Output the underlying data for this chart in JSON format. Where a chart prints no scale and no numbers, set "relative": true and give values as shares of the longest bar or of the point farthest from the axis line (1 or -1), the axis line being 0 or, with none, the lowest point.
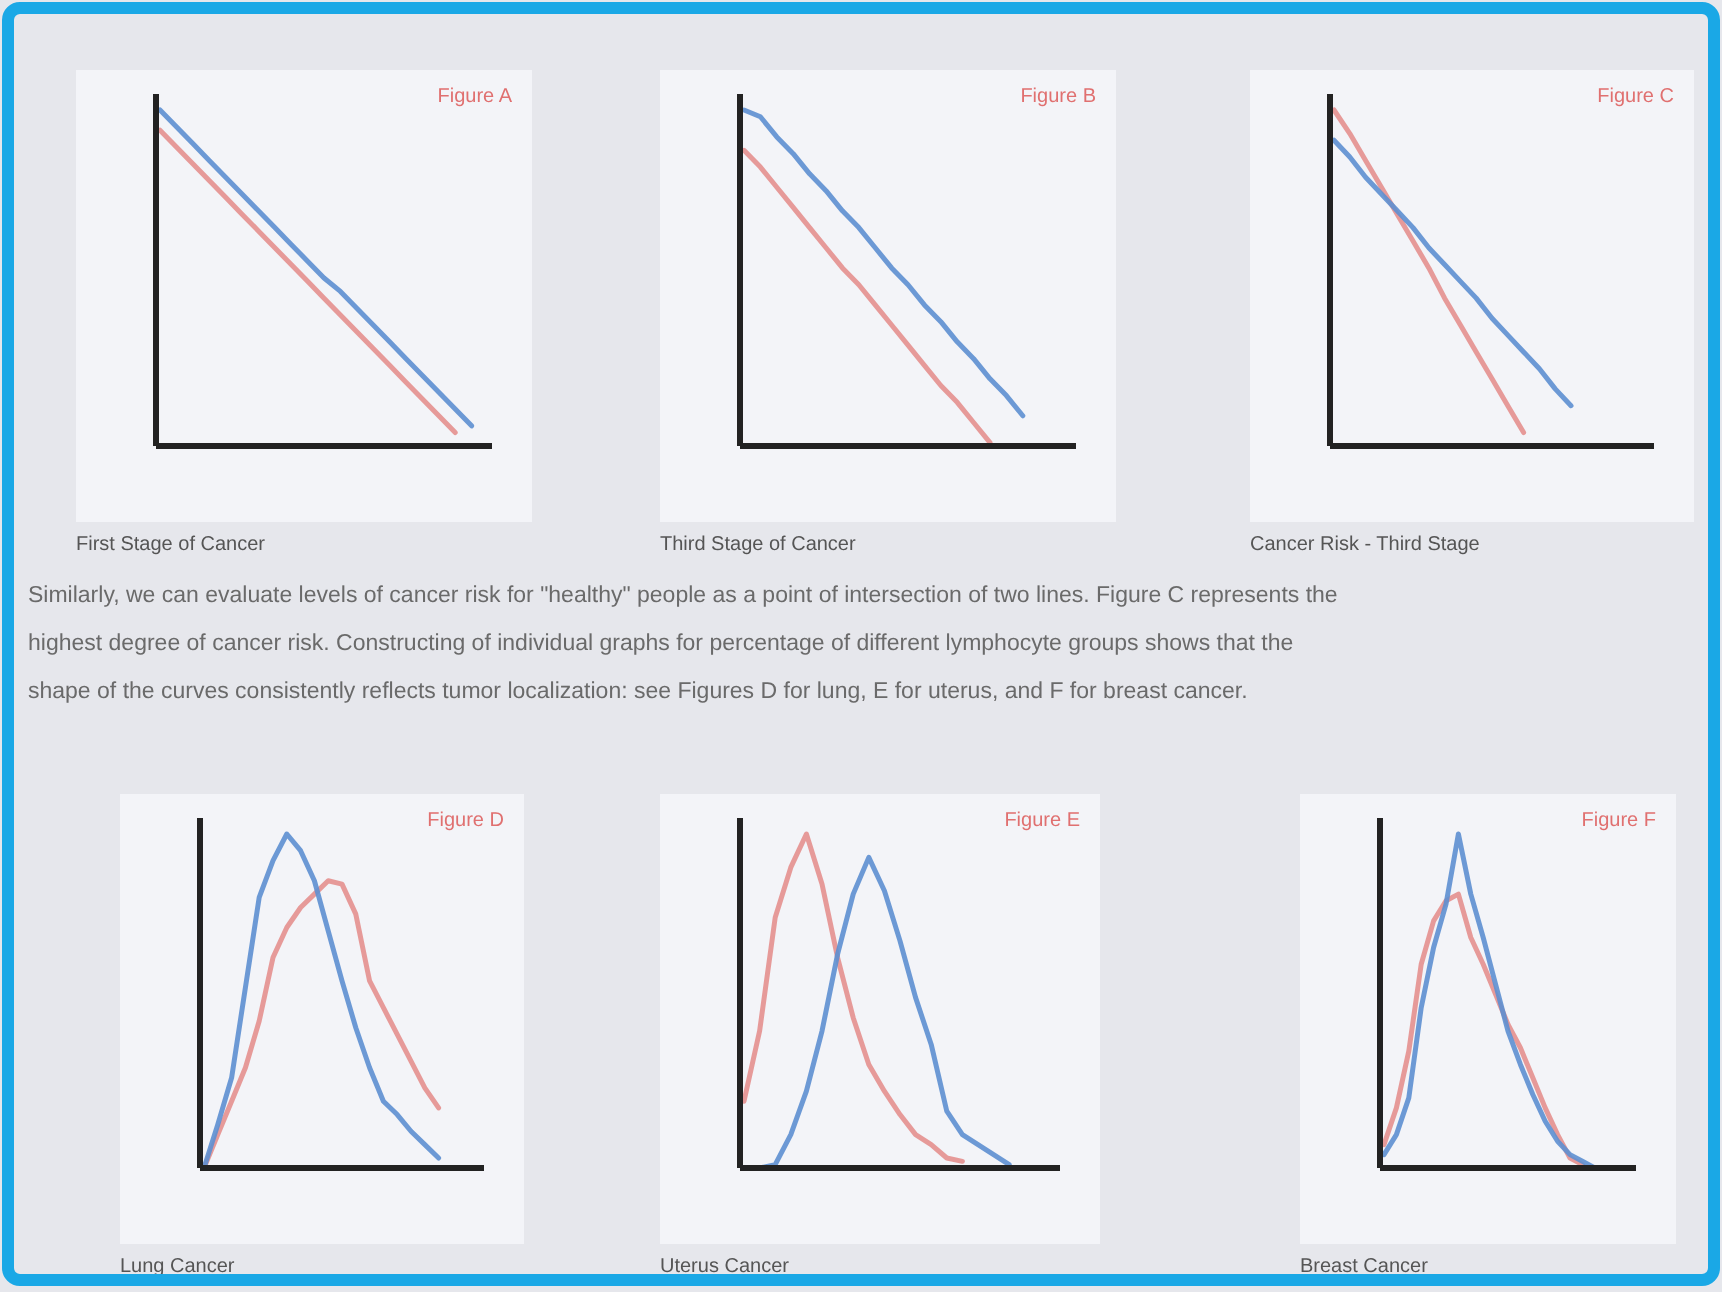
{
  "chart_data": [
    {
      "type": "line",
      "title": "Figure A",
      "annotations": [
        "First Stage of Cancer"
      ],
      "relative": true,
      "categories": [
        null,
        null,
        null,
        null,
        null,
        null,
        null,
        null,
        null,
        null,
        null,
        null,
        null,
        null,
        null,
        null,
        null,
        null,
        null,
        null,
        null
      ],
      "series": [
        {
          "color": "#e4908e",
          "values": [
            0.94,
            0.89,
            0.84,
            0.79,
            0.74,
            0.69,
            0.64,
            0.59,
            0.54,
            0.49,
            0.44,
            0.39,
            0.34,
            0.29,
            0.24,
            0.19,
            0.14,
            0.09,
            0.04,
            null,
            null
          ]
        },
        {
          "color": "#5d8fd0",
          "values": [
            1,
            0.95,
            0.9,
            0.85,
            0.8,
            0.75,
            0.7,
            0.65,
            0.6,
            0.55,
            0.5,
            0.46,
            0.41,
            0.36,
            0.31,
            0.26,
            0.21,
            0.16,
            0.11,
            0.06,
            null
          ]
        }
      ]
    },
    {
      "type": "line",
      "title": "Figure B",
      "annotations": [
        "Third Stage of Cancer"
      ],
      "relative": true,
      "categories": [
        null,
        null,
        null,
        null,
        null,
        null,
        null,
        null,
        null,
        null,
        null,
        null,
        null,
        null,
        null,
        null,
        null,
        null,
        null,
        null,
        null
      ],
      "series": [
        {
          "color": "#e4908e",
          "values": [
            0.88,
            0.83,
            0.77,
            0.71,
            0.65,
            0.59,
            0.53,
            0.48,
            0.42,
            0.36,
            0.3,
            0.24,
            0.18,
            0.13,
            0.07,
            0.01,
            null,
            null,
            null,
            null,
            null
          ]
        },
        {
          "color": "#5d8fd0",
          "values": [
            1,
            0.98,
            0.92,
            0.87,
            0.81,
            0.76,
            0.7,
            0.65,
            0.59,
            0.53,
            0.48,
            0.42,
            0.37,
            0.31,
            0.26,
            0.2,
            0.15,
            0.09,
            null,
            null,
            null
          ]
        }
      ]
    },
    {
      "type": "line",
      "title": "Figure C",
      "annotations": [
        "Cancer Risk - Third Stage"
      ],
      "relative": true,
      "categories": [
        null,
        null,
        null,
        null,
        null,
        null,
        null,
        null,
        null,
        null,
        null,
        null,
        null,
        null,
        null,
        null,
        null,
        null,
        null,
        null,
        null
      ],
      "series": [
        {
          "color": "#e4908e",
          "values": [
            1,
            0.93,
            0.85,
            0.77,
            0.69,
            0.61,
            0.53,
            0.44,
            0.36,
            0.28,
            0.2,
            0.12,
            0.04,
            null,
            null,
            null,
            null,
            null,
            null,
            null,
            null
          ]
        },
        {
          "color": "#5d8fd0",
          "values": [
            0.91,
            0.86,
            0.8,
            0.75,
            0.7,
            0.65,
            0.59,
            0.54,
            0.49,
            0.44,
            0.38,
            0.33,
            0.28,
            0.23,
            0.17,
            0.12,
            null,
            null,
            null,
            null,
            null
          ]
        }
      ]
    },
    {
      "type": "line",
      "title": "Figure D",
      "annotations": [
        "Lung Cancer"
      ],
      "relative": true,
      "categories": [
        null,
        null,
        null,
        null,
        null,
        null,
        null,
        null,
        null,
        null,
        null,
        null,
        null,
        null,
        null,
        null,
        null,
        null,
        null,
        null,
        null
      ],
      "series": [
        {
          "color": "#e4908e",
          "values": [
            0,
            0.1,
            0.2,
            0.3,
            0.44,
            0.63,
            0.72,
            0.78,
            0.82,
            0.86,
            0.85,
            0.76,
            0.56,
            0.48,
            0.4,
            0.32,
            0.24,
            0.18,
            null,
            null,
            null
          ]
        },
        {
          "color": "#5d8fd0",
          "values": [
            0,
            0.13,
            0.27,
            0.54,
            0.81,
            0.92,
            1,
            0.95,
            0.86,
            0.71,
            0.56,
            0.42,
            0.3,
            0.2,
            0.16,
            0.11,
            0.07,
            0.03,
            null,
            null,
            null
          ]
        }
      ]
    },
    {
      "type": "line",
      "title": "Figure E",
      "annotations": [
        "Uterus Cancer"
      ],
      "relative": true,
      "categories": [
        null,
        null,
        null,
        null,
        null,
        null,
        null,
        null,
        null,
        null,
        null,
        null,
        null,
        null,
        null,
        null,
        null,
        null,
        null,
        null,
        null
      ],
      "series": [
        {
          "color": "#e4908e",
          "values": [
            0.2,
            0.41,
            0.75,
            0.9,
            1,
            0.85,
            0.63,
            0.45,
            0.31,
            0.23,
            0.16,
            0.1,
            0.07,
            0.03,
            0.02,
            null,
            null,
            null,
            null,
            null,
            null
          ]
        },
        {
          "color": "#5d8fd0",
          "values": [
            0,
            0,
            0.01,
            0.1,
            0.23,
            0.41,
            0.64,
            0.82,
            0.93,
            0.83,
            0.68,
            0.51,
            0.37,
            0.17,
            0.1,
            0.07,
            0.04,
            0.01,
            null,
            null,
            null
          ]
        }
      ]
    },
    {
      "type": "line",
      "title": "Figure F",
      "annotations": [
        "Breast Cancer"
      ],
      "relative": true,
      "categories": [
        null,
        null,
        null,
        null,
        null,
        null,
        null,
        null,
        null,
        null,
        null,
        null,
        null,
        null,
        null,
        null,
        null,
        null,
        null,
        null,
        null
      ],
      "series": [
        {
          "color": "#e4908e",
          "values": [
            0.07,
            0.18,
            0.35,
            0.61,
            0.74,
            0.8,
            0.82,
            0.69,
            0.61,
            0.52,
            0.43,
            0.36,
            0.27,
            0.18,
            0.1,
            0.03,
            0.01,
            null,
            null,
            null,
            null
          ]
        },
        {
          "color": "#5d8fd0",
          "values": [
            0.04,
            0.1,
            0.21,
            0.48,
            0.66,
            0.79,
            1,
            0.82,
            0.69,
            0.55,
            0.41,
            0.31,
            0.22,
            0.14,
            0.08,
            0.04,
            0.02,
            0,
            null,
            null,
            null
          ]
        }
      ]
    },
    {
      "type": "other",
      "annotations": [
        "Similarly, we can evaluate levels of cancer risk for \"healthy\" people as a point of intersection of two lines. Figure C represents the",
        "highest degree of cancer risk. Constructing of individual graphs for percentage of different lymphocyte groups shows that the",
        "shape of the curves consistently reflects tumor localization: see Figures D for lung, E for uterus, and F for breast cancer."
      ]
    }
  ]
}
